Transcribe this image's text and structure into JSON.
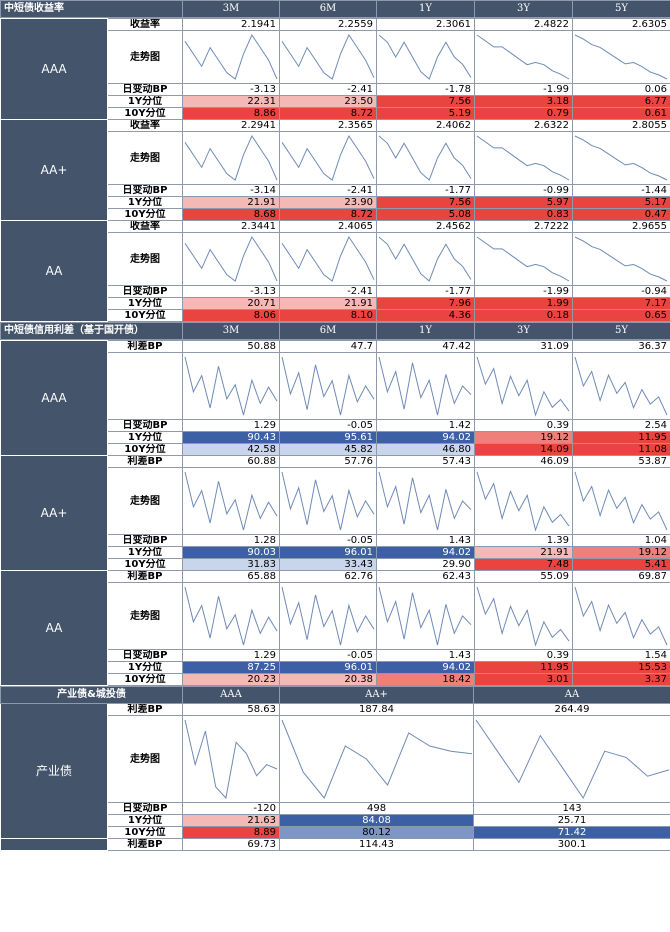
{
  "sections": {
    "yield": {
      "title": "中短债收益率",
      "columns": [
        "3M",
        "6M",
        "1Y",
        "3Y",
        "5Y"
      ],
      "groups": [
        {
          "name": "AAA",
          "rate_label": "收益率",
          "trend_label": "走势图",
          "daily_label": "日变动BP",
          "p1_label": "1Y分位",
          "p10_label": "10Y分位",
          "rate": [
            "2.1941",
            "2.2559",
            "2.3061",
            "2.4822",
            "2.6305"
          ],
          "daily": [
            "-3.13",
            "-2.41",
            "-1.78",
            "-1.99",
            "0.06"
          ],
          "p1": [
            "22.31",
            "23.50",
            "7.56",
            "3.18",
            "6.77"
          ],
          "p10": [
            "8.86",
            "8.72",
            "5.19",
            "0.79",
            "0.61"
          ]
        },
        {
          "name": "AA+",
          "rate_label": "收益率",
          "trend_label": "走势图",
          "daily_label": "日变动BP",
          "p1_label": "1Y分位",
          "p10_label": "10Y分位",
          "rate": [
            "2.2941",
            "2.3565",
            "2.4062",
            "2.6322",
            "2.8055"
          ],
          "daily": [
            "-3.14",
            "-2.41",
            "-1.77",
            "-0.99",
            "-1.44"
          ],
          "p1": [
            "21.91",
            "23.90",
            "7.56",
            "5.97",
            "5.17"
          ],
          "p10": [
            "8.68",
            "8.72",
            "5.08",
            "0.83",
            "0.47"
          ]
        },
        {
          "name": "AA",
          "rate_label": "收益率",
          "trend_label": "走势图",
          "daily_label": "日变动BP",
          "p1_label": "1Y分位",
          "p10_label": "10Y分位",
          "rate": [
            "2.3441",
            "2.4065",
            "2.4562",
            "2.7222",
            "2.9655"
          ],
          "daily": [
            "-3.13",
            "-2.41",
            "-1.77",
            "-1.99",
            "-0.94"
          ],
          "p1": [
            "20.71",
            "21.91",
            "7.96",
            "1.99",
            "7.17"
          ],
          "p10": [
            "8.06",
            "8.10",
            "4.36",
            "0.18",
            "0.65"
          ]
        }
      ]
    },
    "spread": {
      "title": "中短债信用利差（基于国开债）",
      "columns": [
        "3M",
        "6M",
        "1Y",
        "3Y",
        "5Y"
      ],
      "groups": [
        {
          "name": "AAA",
          "rate_label": "利差BP",
          "trend_label": "",
          "daily_label": "日变动BP",
          "p1_label": "1Y分位",
          "p10_label": "10Y分位",
          "rate": [
            "50.88",
            "47.7",
            "47.42",
            "31.09",
            "36.37"
          ],
          "daily": [
            "1.29",
            "-0.05",
            "1.42",
            "0.39",
            "2.54"
          ],
          "p1": [
            "90.43",
            "95.61",
            "94.02",
            "19.12",
            "11.95"
          ],
          "p10": [
            "42.58",
            "45.82",
            "46.80",
            "14.09",
            "11.08"
          ]
        },
        {
          "name": "AA+",
          "rate_label": "利差BP",
          "trend_label": "走势图",
          "daily_label": "日变动BP",
          "p1_label": "1Y分位",
          "p10_label": "10Y分位",
          "rate": [
            "60.88",
            "57.76",
            "57.43",
            "46.09",
            "53.87"
          ],
          "daily": [
            "1.28",
            "-0.05",
            "1.43",
            "1.39",
            "1.04"
          ],
          "p1": [
            "90.03",
            "96.01",
            "94.02",
            "21.91",
            "19.12"
          ],
          "p10": [
            "31.83",
            "33.43",
            "29.90",
            "7.48",
            "5.41"
          ]
        },
        {
          "name": "AA",
          "rate_label": "利差BP",
          "trend_label": "走势图",
          "daily_label": "日变动BP",
          "p1_label": "1Y分位",
          "p10_label": "10Y分位",
          "rate": [
            "65.88",
            "62.76",
            "62.43",
            "55.09",
            "69.87"
          ],
          "daily": [
            "1.29",
            "-0.05",
            "1.43",
            "0.39",
            "1.54"
          ],
          "p1": [
            "87.25",
            "96.01",
            "94.02",
            "11.95",
            "15.53"
          ],
          "p10": [
            "20.23",
            "20.38",
            "18.42",
            "3.01",
            "3.37"
          ]
        }
      ]
    },
    "industry": {
      "title": "产业债&城投债",
      "columns": [
        "AAA",
        "AA+",
        "AA"
      ],
      "group_name": "产业债",
      "rate_label": "利差BP",
      "trend_label": "走势图",
      "daily_label": "日变动BP",
      "p1_label": "1Y分位",
      "p10_label": "10Y分位",
      "rate": [
        "58.63",
        "187.84",
        "264.49"
      ],
      "daily": [
        "-120",
        "498",
        "143"
      ],
      "p1": [
        "21.63",
        "84.08",
        "25.71"
      ],
      "p10": [
        "8.89",
        "80.12",
        "71.42"
      ],
      "next_label": "利差BP",
      "next": [
        "69.73",
        "114.43",
        "300.1"
      ]
    }
  },
  "colors": {
    "header": "#44546a",
    "red_strong": "#e9443f",
    "red_mid": "#ef7f79",
    "red_light": "#f4b9b4",
    "blue_strong": "#3d5fa5",
    "blue_mid": "#7e96c6",
    "blue_light": "#c9d5ea",
    "line": "#6f8ab7"
  },
  "chart_data": [
    {
      "type": "line",
      "title": "走势图",
      "series": [
        {
          "name": "AAA 3M",
          "values": [
            2.5,
            2.4,
            2.3,
            2.45,
            2.35,
            2.25,
            2.2,
            2.4,
            2.55,
            2.45,
            2.35,
            2.2
          ]
        },
        {
          "name": "AAA 6M",
          "values": [
            2.55,
            2.45,
            2.35,
            2.5,
            2.4,
            2.3,
            2.25,
            2.45,
            2.6,
            2.5,
            2.4,
            2.26
          ]
        },
        {
          "name": "AAA 1Y",
          "values": [
            2.6,
            2.55,
            2.45,
            2.55,
            2.45,
            2.35,
            2.3,
            2.45,
            2.55,
            2.45,
            2.4,
            2.31
          ]
        },
        {
          "name": "AAA 3Y",
          "values": [
            2.85,
            2.8,
            2.75,
            2.75,
            2.7,
            2.65,
            2.6,
            2.62,
            2.6,
            2.55,
            2.52,
            2.48
          ]
        },
        {
          "name": "AAA 5Y",
          "values": [
            2.95,
            2.92,
            2.88,
            2.86,
            2.82,
            2.78,
            2.74,
            2.75,
            2.72,
            2.68,
            2.66,
            2.63
          ]
        }
      ]
    },
    {
      "type": "line",
      "title": "走势图",
      "series": [
        {
          "name": "AAA 3M",
          "values": [
            70,
            55,
            62,
            48,
            66,
            52,
            58,
            45,
            60,
            50,
            57,
            51
          ]
        },
        {
          "name": "AAA 6M",
          "values": [
            64,
            50,
            58,
            44,
            61,
            49,
            55,
            42,
            57,
            47,
            53,
            48
          ]
        },
        {
          "name": "AAA 1Y",
          "values": [
            60,
            48,
            55,
            42,
            58,
            46,
            52,
            40,
            54,
            44,
            50,
            47
          ]
        },
        {
          "name": "AAA 3Y",
          "values": [
            45,
            38,
            42,
            33,
            40,
            35,
            39,
            30,
            36,
            32,
            34,
            31
          ]
        },
        {
          "name": "AAA 5Y",
          "values": [
            52,
            44,
            48,
            40,
            47,
            42,
            45,
            38,
            43,
            39,
            41,
            36
          ]
        }
      ]
    },
    {
      "type": "line",
      "title": "",
      "series": [
        {
          "name": "产业债 AAA",
          "values": [
            80,
            60,
            75,
            50,
            45,
            70,
            65,
            55,
            60,
            58
          ]
        },
        {
          "name": "产业债 AA+",
          "values": [
            200,
            180,
            170,
            190,
            185,
            175,
            195,
            190,
            188,
            187
          ]
        },
        {
          "name": "产业债 AA",
          "values": [
            280,
            270,
            260,
            275,
            265,
            255,
            270,
            268,
            262,
            264
          ]
        }
      ]
    }
  ]
}
